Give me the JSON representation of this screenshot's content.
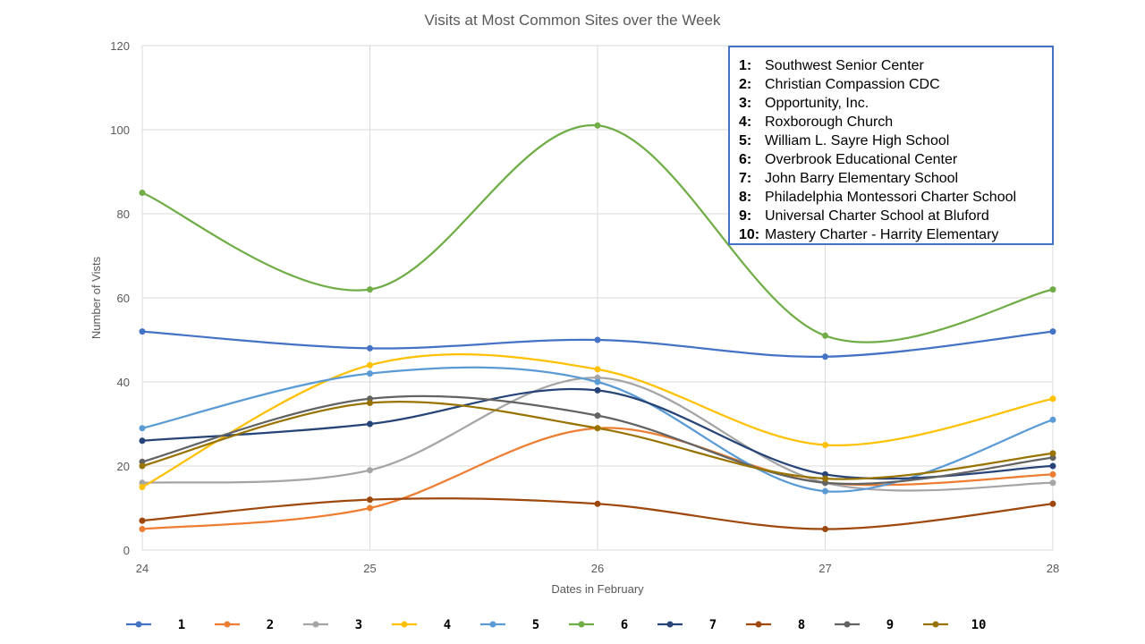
{
  "chart_data": {
    "type": "line",
    "title": "Visits at Most Common Sites over the Week",
    "xlabel": "Dates in February",
    "ylabel": "Number of Vists",
    "x": [
      24,
      25,
      26,
      27,
      28
    ],
    "ylim": [
      0,
      120
    ],
    "yticks": [
      0,
      20,
      40,
      60,
      80,
      100,
      120
    ],
    "grid": true,
    "smooth": true,
    "legend_position": "bottom",
    "series": [
      {
        "name": "1",
        "color": "#4472c4",
        "values": [
          52,
          48,
          50,
          46,
          52
        ]
      },
      {
        "name": "2",
        "color": "#ed7d31",
        "values": [
          5,
          10,
          29,
          16,
          18
        ]
      },
      {
        "name": "3",
        "color": "#a5a5a5",
        "values": [
          16,
          19,
          41,
          16,
          16
        ]
      },
      {
        "name": "4",
        "color": "#ffc000",
        "values": [
          15,
          44,
          43,
          25,
          36
        ]
      },
      {
        "name": "5",
        "color": "#5b9bd5",
        "values": [
          29,
          42,
          40,
          14,
          31
        ]
      },
      {
        "name": "6",
        "color": "#70ad47",
        "values": [
          85,
          62,
          101,
          51,
          62
        ]
      },
      {
        "name": "7",
        "color": "#264478",
        "values": [
          26,
          30,
          38,
          18,
          20
        ]
      },
      {
        "name": "8",
        "color": "#9e480e",
        "values": [
          7,
          12,
          11,
          5,
          11
        ]
      },
      {
        "name": "9",
        "color": "#636363",
        "values": [
          21,
          36,
          32,
          16,
          22
        ]
      },
      {
        "name": "10",
        "color": "#997300",
        "values": [
          20,
          35,
          29,
          17,
          23
        ]
      }
    ]
  },
  "sites": [
    {
      "num": "1:",
      "name": "Southwest Senior Center"
    },
    {
      "num": "2:",
      "name": "Christian Compassion CDC"
    },
    {
      "num": "3:",
      "name": "Opportunity, Inc."
    },
    {
      "num": "4:",
      "name": "Roxborough Church"
    },
    {
      "num": "5:",
      "name": "William L. Sayre High School"
    },
    {
      "num": "6:",
      "name": "Overbrook Educational Center"
    },
    {
      "num": "7:",
      "name": "John Barry Elementary School"
    },
    {
      "num": "8:",
      "name": "Philadelphia Montessori Charter School"
    },
    {
      "num": "9:",
      "name": "Universal Charter School at Bluford"
    },
    {
      "num": "10:",
      "name": "Mastery Charter - Harrity Elementary"
    }
  ]
}
